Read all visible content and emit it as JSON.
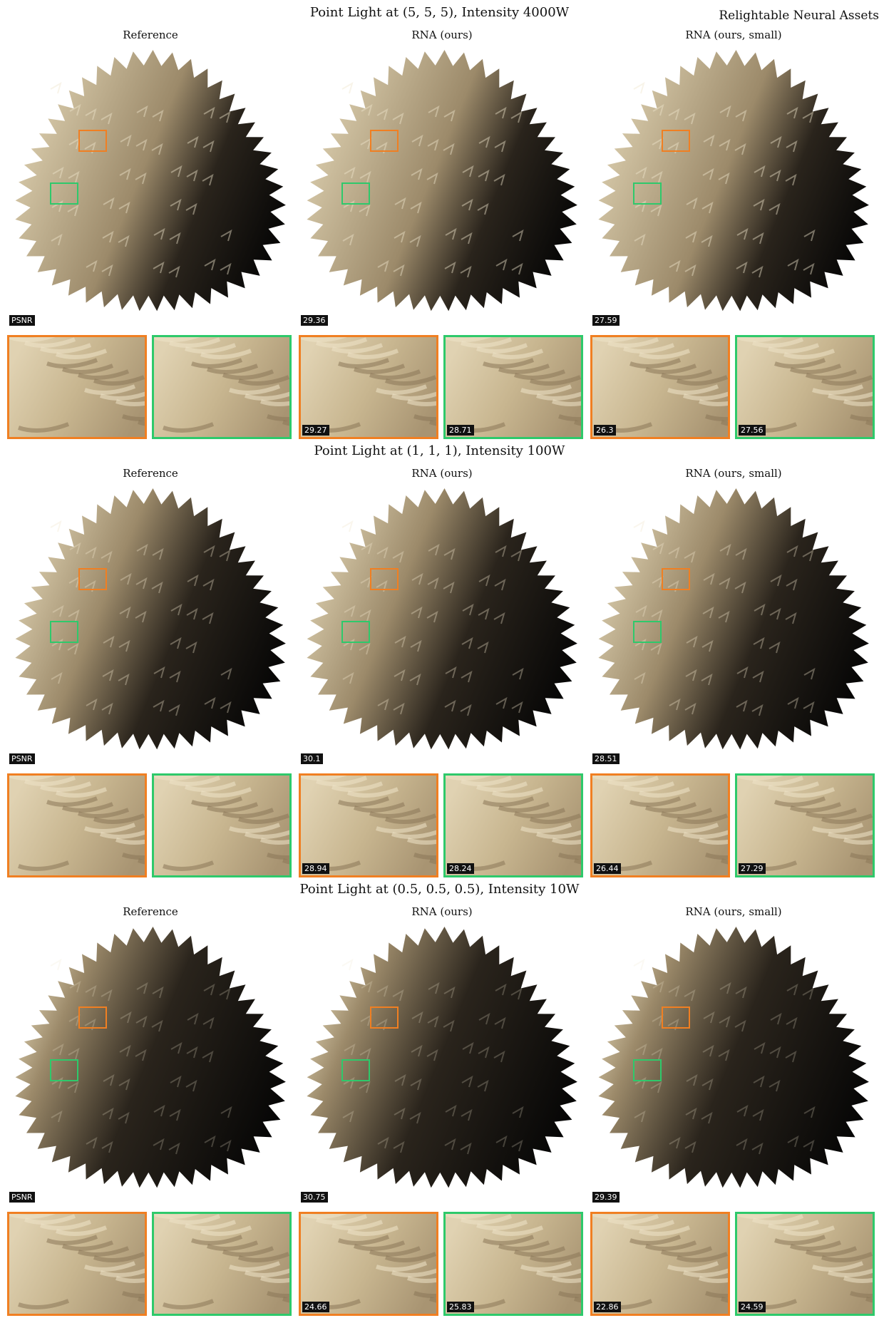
{
  "header": "Relightable Neural Assets",
  "columns": [
    "Reference",
    "RNA (ours)",
    "RNA (ours, small)"
  ],
  "sections": [
    {
      "title": "Point Light at (5, 5, 5), Intensity 4000W",
      "main_psnr": [
        "PSNR",
        "29.36",
        "27.59"
      ],
      "crop_psnr": [
        "",
        "",
        "29.27",
        "28.71",
        "26.3",
        "27.56"
      ],
      "shadow_level": 0.2
    },
    {
      "title": "Point Light at (1, 1, 1), Intensity 100W",
      "main_psnr": [
        "PSNR",
        "30.1",
        "28.51"
      ],
      "crop_psnr": [
        "",
        "",
        "28.94",
        "28.24",
        "26.44",
        "27.29"
      ],
      "shadow_level": 0.5
    },
    {
      "title": "Point Light at (0.5, 0.5, 0.5), Intensity 10W",
      "main_psnr": [
        "PSNR",
        "30.75",
        "29.39"
      ],
      "crop_psnr": [
        "",
        "",
        "24.66",
        "25.83",
        "22.86",
        "24.59"
      ],
      "shadow_level": 0.85
    }
  ],
  "colors": {
    "highlight_orange": "#f07f22",
    "highlight_green": "#2ec96b",
    "fur": "#c9b592"
  }
}
